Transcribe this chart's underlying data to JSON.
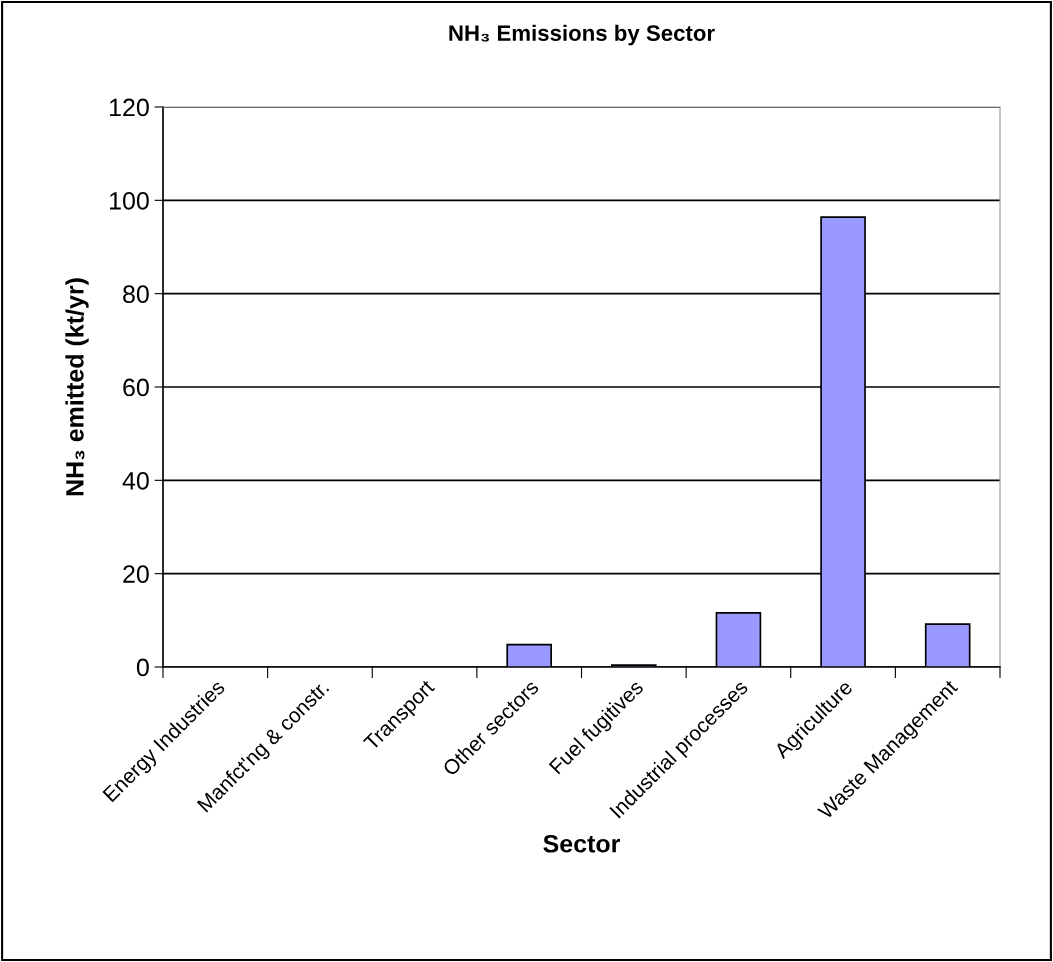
{
  "chart_data": {
    "type": "bar",
    "title": "NH₃ Emissions by Sector",
    "xlabel": "Sector",
    "ylabel": "NH₃ emitted (kt/yr)",
    "categories": [
      "Energy Industries",
      "Manfct'ng & constr.",
      "Transport",
      "Other sectors",
      "Fuel fugitives",
      "Industrial processes",
      "Agriculture",
      "Waste Management"
    ],
    "values": [
      null,
      null,
      null,
      4.8,
      0.4,
      11.6,
      96.4,
      9.2
    ],
    "color": "#9999ff",
    "ylim": [
      0,
      120
    ],
    "yticks": [
      0,
      20,
      40,
      60,
      80,
      100,
      120
    ],
    "grid": "y",
    "legend": false
  }
}
